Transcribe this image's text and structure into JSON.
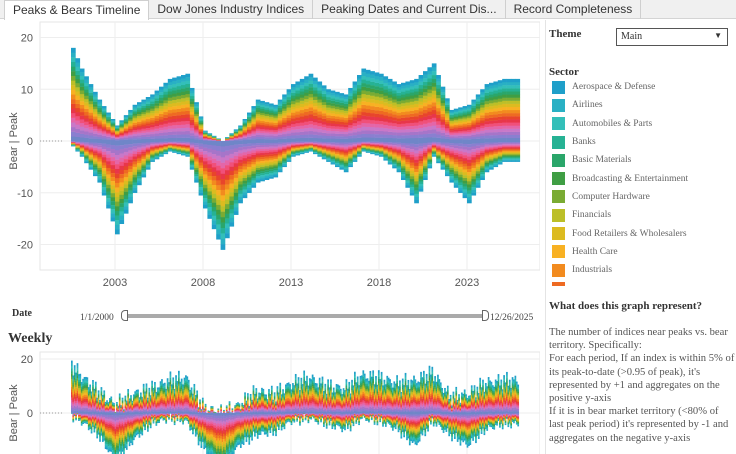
{
  "tabs": [
    "Peaks & Bears Timeline",
    "Dow Jones Industry Indices",
    "Peaking Dates and Current Dis...",
    "Record Completeness"
  ],
  "theme": {
    "label": "Theme",
    "value": "Main"
  },
  "sector": {
    "label": "Sector",
    "items": [
      {
        "name": "Aerospace & Defense",
        "color": "#1f9fc9"
      },
      {
        "name": "Airlines",
        "color": "#29b0c4"
      },
      {
        "name": "Automobiles & Parts",
        "color": "#33bfb9"
      },
      {
        "name": "Banks",
        "color": "#26b294"
      },
      {
        "name": "Basic Materials",
        "color": "#2aa66a"
      },
      {
        "name": "Broadcasting & Entertainment",
        "color": "#3f9e44"
      },
      {
        "name": "Computer Hardware",
        "color": "#7aab33"
      },
      {
        "name": "Financials",
        "color": "#bcbf28"
      },
      {
        "name": "Food Retailers & Wholesalers",
        "color": "#dcbb20"
      },
      {
        "name": "Health Care",
        "color": "#f8b123"
      },
      {
        "name": "Industrials",
        "color": "#f28b1f"
      }
    ]
  },
  "palette": [
    "#1f9fc9",
    "#29b0c4",
    "#33bfb9",
    "#26b294",
    "#2aa66a",
    "#3f9e44",
    "#7aab33",
    "#bcbf28",
    "#dcbb20",
    "#f8b123",
    "#f28b1f",
    "#ee6a22",
    "#e8452b",
    "#e8364a",
    "#f0507a",
    "#e466a8",
    "#c978c8",
    "#a675c9",
    "#8a7fd0",
    "#6f86c8"
  ],
  "date_filter": {
    "label": "Date",
    "start": "1/1/2000",
    "end": "12/26/2025"
  },
  "weekly_title": "Weekly",
  "info": {
    "title": "What does this graph represent?",
    "text": "The number of indices near peaks vs. bear territory.  Specifically:\nFor each period, If an index is within 5% of its peak-to-date (>0.95 of peak), it's represented by +1 and aggregates on the positive y-axis\nIf it is in bear market territory (<80% of last peak period) it's represented by -1 and aggregates on the negative y-axis"
  },
  "chart_data": [
    {
      "type": "area",
      "title": "",
      "ylabel": "Bear | Peak",
      "ylim": [
        -25,
        22
      ],
      "yticks": [
        "20",
        "10",
        "0",
        "-10",
        "-20"
      ],
      "xticks": [
        "2003",
        "2008",
        "2013",
        "2018",
        "2023"
      ],
      "grid": true,
      "x": [
        2000.5,
        2001,
        2002,
        2003,
        2004,
        2005,
        2006,
        2007,
        2008,
        2009,
        2010,
        2011,
        2012,
        2013,
        2014,
        2015,
        2016,
        2017,
        2018,
        2019,
        2020,
        2021,
        2022,
        2023,
        2024,
        2025,
        2025.9
      ],
      "peak_total": [
        18,
        14,
        8,
        3,
        7,
        9,
        12,
        13,
        2,
        0,
        3,
        8,
        7,
        11,
        13,
        10,
        9,
        14,
        13,
        11,
        12,
        15,
        6,
        7,
        11,
        12,
        12
      ],
      "bear_total": [
        -1,
        -3,
        -8,
        -18,
        -10,
        -4,
        -2,
        -3,
        -13,
        -21,
        -12,
        -8,
        -7,
        -3,
        -2,
        -4,
        -6,
        -2,
        -3,
        -6,
        -12,
        -3,
        -8,
        -12,
        -6,
        -4,
        -4
      ]
    },
    {
      "type": "area",
      "title": "Weekly",
      "ylabel": "Bear | Peak",
      "yticks": [
        "20",
        "0"
      ]
    }
  ]
}
